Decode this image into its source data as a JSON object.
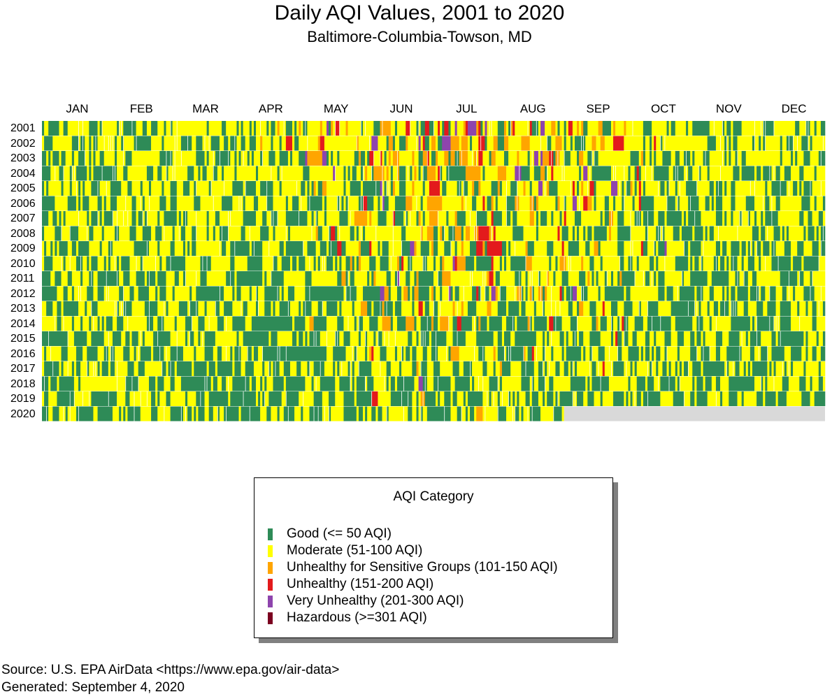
{
  "chart_data": {
    "type": "heatmap",
    "title": "Daily AQI Values, 2001 to 2020",
    "subtitle": "Baltimore-Columbia-Towson, MD",
    "months": [
      "JAN",
      "FEB",
      "MAR",
      "APR",
      "MAY",
      "JUN",
      "JUL",
      "AUG",
      "SEP",
      "OCT",
      "NOV",
      "DEC"
    ],
    "years": [
      "2001",
      "2002",
      "2003",
      "2004",
      "2005",
      "2006",
      "2007",
      "2008",
      "2009",
      "2010",
      "2011",
      "2012",
      "2013",
      "2014",
      "2015",
      "2016",
      "2017",
      "2018",
      "2019",
      "2020"
    ],
    "legend": {
      "title": "AQI Category",
      "items": [
        {
          "label": "Good (<= 50 AQI)",
          "color": "#2e8b57"
        },
        {
          "label": "Moderate (51-100 AQI)",
          "color": "#ffff00"
        },
        {
          "label": "Unhealthy for Sensitive Groups (101-150 AQI)",
          "color": "#ffa500"
        },
        {
          "label": "Unhealthy (151-200 AQI)",
          "color": "#e31a1c"
        },
        {
          "label": "Very Unhealthy (201-300 AQI)",
          "color": "#8e44ad"
        },
        {
          "label": "Hazardous (>=301 AQI)",
          "color": "#7b0020"
        }
      ]
    },
    "no_data_color": "#d9d9d9",
    "last_data_date": "2020-08-31",
    "daily_values_note": ""
  },
  "footer": {
    "source": "Source: U.S. EPA AirData <https://www.epa.gov/air-data>",
    "generated": "Generated: September 4, 2020"
  }
}
